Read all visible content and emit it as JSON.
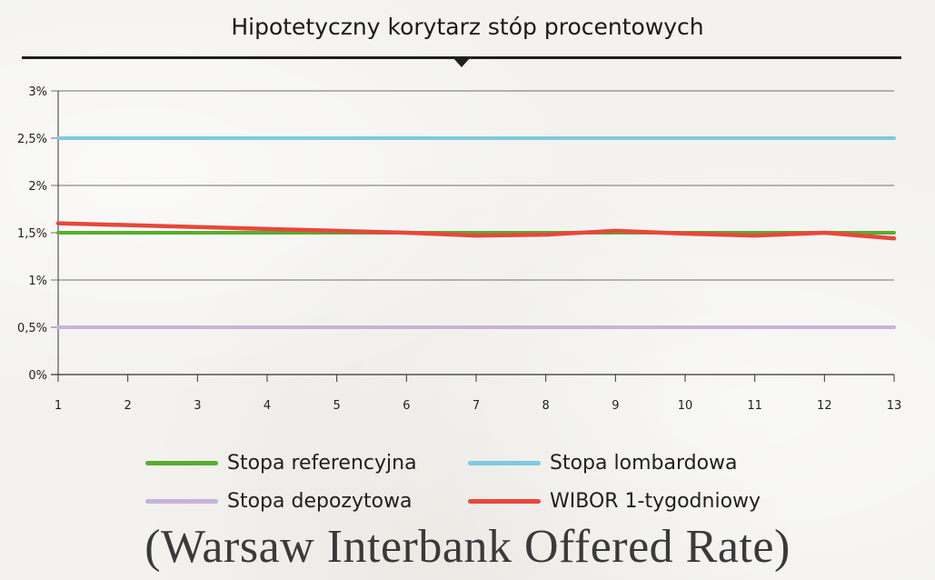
{
  "chart_data": {
    "type": "line",
    "title": "Hipotetyczny korytarz stóp procentowych",
    "x": [
      1,
      2,
      3,
      4,
      5,
      6,
      7,
      8,
      9,
      10,
      11,
      12,
      13
    ],
    "x_tick_labels": [
      "1",
      "2",
      "3",
      "4",
      "5",
      "6",
      "7",
      "8",
      "9",
      "10",
      "11",
      "12",
      "13"
    ],
    "y_tick_labels": [
      "0%",
      "0,5%",
      "1%",
      "1,5%",
      "2%",
      "2,5%",
      "3%"
    ],
    "y_ticks": [
      0,
      0.5,
      1,
      1.5,
      2,
      2.5,
      3
    ],
    "ylim": [
      0,
      3
    ],
    "xlim": [
      1,
      13
    ],
    "grid": true,
    "legend_position": "bottom",
    "series": [
      {
        "name": "Stopa referencyjna",
        "color": "#5aac2e",
        "values": [
          1.5,
          1.5,
          1.5,
          1.5,
          1.5,
          1.5,
          1.5,
          1.5,
          1.5,
          1.5,
          1.5,
          1.5,
          1.5
        ]
      },
      {
        "name": "Stopa lombardowa",
        "color": "#7dcbe0",
        "values": [
          2.5,
          2.5,
          2.5,
          2.5,
          2.5,
          2.5,
          2.5,
          2.5,
          2.5,
          2.5,
          2.5,
          2.5,
          2.5
        ]
      },
      {
        "name": "Stopa depozytowa",
        "color": "#c7b3d9",
        "values": [
          0.5,
          0.5,
          0.5,
          0.5,
          0.5,
          0.5,
          0.5,
          0.5,
          0.5,
          0.5,
          0.5,
          0.5,
          0.5
        ]
      },
      {
        "name": "WIBOR 1-tygodniowy",
        "color": "#e8473c",
        "values": [
          1.6,
          1.58,
          1.56,
          1.54,
          1.52,
          1.5,
          1.47,
          1.48,
          1.52,
          1.49,
          1.47,
          1.5,
          1.44
        ]
      }
    ]
  },
  "caption": "(Warsaw Interbank Offered Rate)"
}
